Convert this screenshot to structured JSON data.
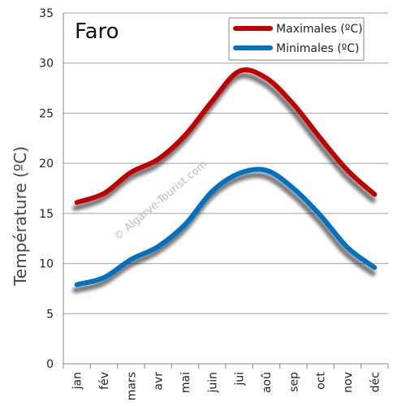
{
  "chart_data": {
    "type": "line",
    "title": "Faro",
    "xlabel": "",
    "ylabel": "Température (ºC)",
    "categories": [
      "jan",
      "fév",
      "mars",
      "avr",
      "mai",
      "juin",
      "jui",
      "aoû",
      "sep",
      "oct",
      "nov",
      "déc"
    ],
    "ylim": [
      0,
      35
    ],
    "yticks": [
      0,
      5,
      10,
      15,
      20,
      25,
      30,
      35
    ],
    "grid": true,
    "legend_position": "top-right",
    "series": [
      {
        "name": "Maximales (ºC)",
        "color": "#c00000",
        "values": [
          16.1,
          17.0,
          19.1,
          20.4,
          22.8,
          26.2,
          29.2,
          28.5,
          25.9,
          22.5,
          19.3,
          16.9
        ]
      },
      {
        "name": "Minimales (ºC)",
        "color": "#0070c0",
        "values": [
          7.9,
          8.6,
          10.4,
          11.7,
          13.9,
          17.2,
          19.0,
          19.3,
          17.5,
          14.8,
          11.6,
          9.6
        ]
      }
    ],
    "watermark": "© Algarve-Tourist.com"
  }
}
